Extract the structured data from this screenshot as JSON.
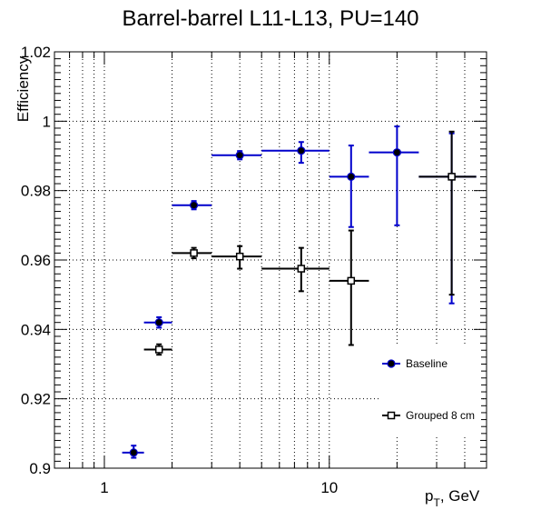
{
  "chart_data": {
    "type": "scatter",
    "title": "Barrel-barrel L11-L13, PU=140",
    "xlabel": "p_T, GeV",
    "xlabel_main": "p",
    "xlabel_sub": "T",
    "xlabel_rest": ", GeV",
    "ylabel": "Efficiency",
    "xscale": "log",
    "xlim": [
      0.6,
      50
    ],
    "ylim": [
      0.9,
      1.02
    ],
    "grid": true,
    "legend_position": "bottom-right",
    "y_ticks": [
      "0.9",
      "0.92",
      "0.94",
      "0.96",
      "0.98",
      "1",
      "1.02"
    ],
    "x_ticks": [
      "1",
      "10"
    ],
    "series": [
      {
        "name": "Baseline",
        "color": "#0000cc",
        "marker": "filled-circle",
        "points": [
          {
            "x": 1.35,
            "xlo": 1.2,
            "xhi": 1.5,
            "y": 0.9045,
            "elo": 0.0015,
            "ehi": 0.002
          },
          {
            "x": 1.75,
            "xlo": 1.5,
            "xhi": 2.0,
            "y": 0.942,
            "elo": 0.0015,
            "ehi": 0.0015
          },
          {
            "x": 2.5,
            "xlo": 2.0,
            "xhi": 3.0,
            "y": 0.9758,
            "elo": 0.0012,
            "ehi": 0.0012
          },
          {
            "x": 4.0,
            "xlo": 3.0,
            "xhi": 5.0,
            "y": 0.9902,
            "elo": 0.0012,
            "ehi": 0.0012
          },
          {
            "x": 7.5,
            "xlo": 5.0,
            "xhi": 10.0,
            "y": 0.9915,
            "elo": 0.0035,
            "ehi": 0.0025
          },
          {
            "x": 12.5,
            "xlo": 10.0,
            "xhi": 15.0,
            "y": 0.984,
            "elo": 0.0145,
            "ehi": 0.009
          },
          {
            "x": 20.0,
            "xlo": 15.0,
            "xhi": 25.0,
            "y": 0.991,
            "elo": 0.021,
            "ehi": 0.0075
          },
          {
            "x": 35.0,
            "xlo": 25.0,
            "xhi": 45.0,
            "y": 0.984,
            "elo": 0.0365,
            "ehi": 0.0125
          }
        ]
      },
      {
        "name": "Grouped 8 cm",
        "color": "#000000",
        "marker": "open-square",
        "points": [
          {
            "x": 1.75,
            "xlo": 1.5,
            "xhi": 2.0,
            "y": 0.9342,
            "elo": 0.0015,
            "ehi": 0.0015
          },
          {
            "x": 2.5,
            "xlo": 2.0,
            "xhi": 3.0,
            "y": 0.962,
            "elo": 0.0015,
            "ehi": 0.0015
          },
          {
            "x": 4.0,
            "xlo": 3.0,
            "xhi": 5.0,
            "y": 0.961,
            "elo": 0.0035,
            "ehi": 0.003
          },
          {
            "x": 7.5,
            "xlo": 5.0,
            "xhi": 10.0,
            "y": 0.9575,
            "elo": 0.0065,
            "ehi": 0.006
          },
          {
            "x": 12.5,
            "xlo": 10.0,
            "xhi": 15.0,
            "y": 0.954,
            "elo": 0.0185,
            "ehi": 0.0145
          },
          {
            "x": 35.0,
            "xlo": 25.0,
            "xhi": 45.0,
            "y": 0.984,
            "elo": 0.034,
            "ehi": 0.013
          }
        ]
      }
    ]
  }
}
